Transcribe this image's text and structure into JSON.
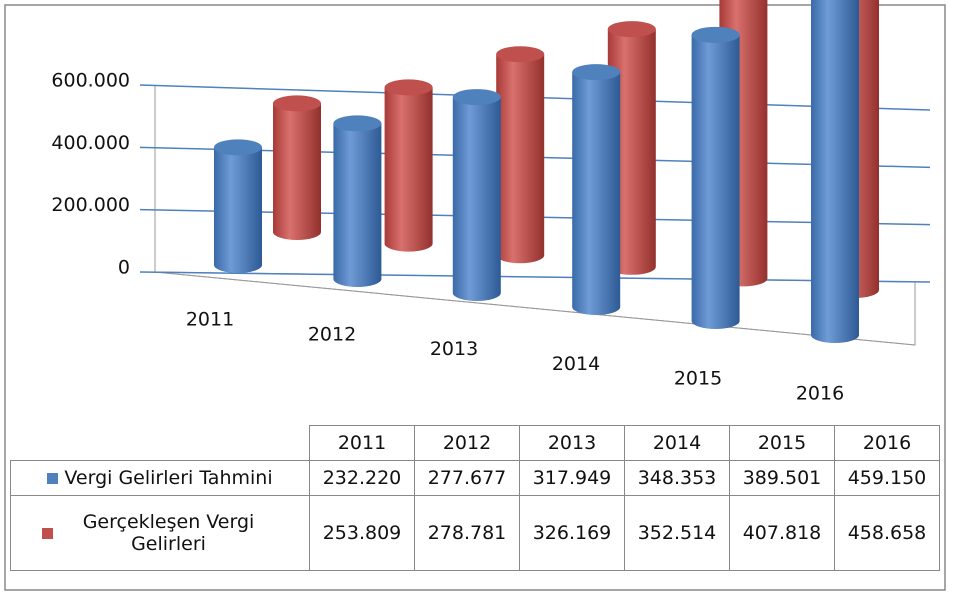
{
  "chart_data": {
    "type": "bar",
    "categories": [
      "2011",
      "2012",
      "2013",
      "2014",
      "2015",
      "2016"
    ],
    "series": [
      {
        "name": "Vergi Gelirleri Tahmini",
        "color": "#4f81bd",
        "values": [
          232220,
          277677,
          317949,
          348353,
          389501,
          459150
        ],
        "value_labels": [
          "232.220",
          "277.677",
          "317.949",
          "348.353",
          "389.501",
          "459.150"
        ]
      },
      {
        "name": "Gerçekleşen Vergi Gelirleri",
        "color": "#c0504d",
        "values": [
          253809,
          278781,
          326169,
          352514,
          407818,
          458658
        ],
        "value_labels": [
          "253.809",
          "278.781",
          "326.169",
          "352.514",
          "407.818",
          "458.658"
        ]
      }
    ],
    "ylim": [
      0,
      600000
    ],
    "yticks": [
      0,
      {
        "value": 200000,
        "label": "200.000"
      },
      {
        "value": 400000,
        "label": "400.000"
      },
      {
        "value": 600000,
        "label": "600.000"
      }
    ],
    "grid": true
  }
}
